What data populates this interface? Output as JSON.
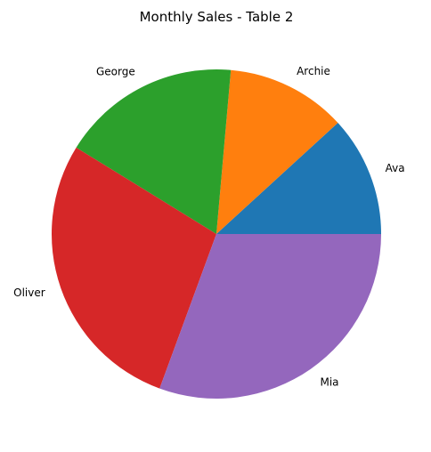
{
  "chart_data": {
    "type": "pie",
    "title": "Monthly Sales - Table 2",
    "categories": [
      "Ava",
      "Archie",
      "George",
      "Oliver",
      "Mia"
    ],
    "values": [
      11.8,
      11.8,
      17.6,
      28.2,
      30.6
    ],
    "colors": [
      "#1f77b4",
      "#ff7f0e",
      "#2ca02c",
      "#d62728",
      "#9467bd"
    ],
    "start_angle_deg": 0,
    "direction": "counterclockwise",
    "legend": "none"
  }
}
